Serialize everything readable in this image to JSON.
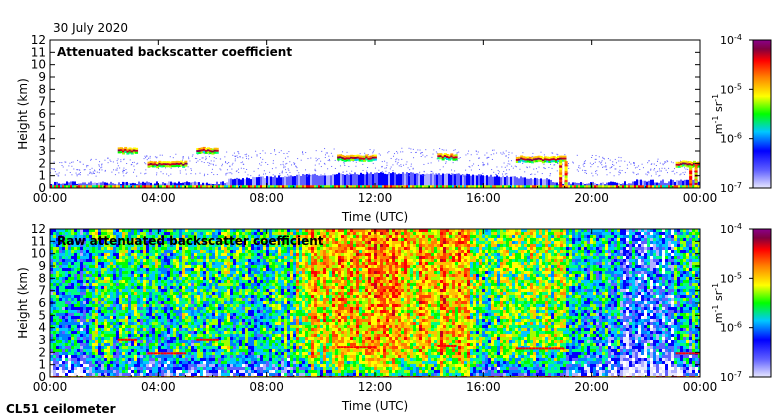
{
  "date_label": "30 July 2020",
  "instrument_label": "CL51 ceilometer",
  "chart_data": [
    {
      "type": "heatmap",
      "title": "Attenuated backscatter coefficient",
      "xlabel": "Time (UTC)",
      "ylabel": "Height (km)",
      "xlim": [
        0,
        24
      ],
      "ylim": [
        0,
        12
      ],
      "x_ticks": [
        "00:00",
        "04:00",
        "08:00",
        "12:00",
        "16:00",
        "20:00",
        "00:00"
      ],
      "y_ticks": [
        0,
        1,
        2,
        3,
        4,
        5,
        6,
        7,
        8,
        9,
        10,
        11,
        12
      ],
      "colorbar": {
        "scale": "log",
        "range": [
          1e-07,
          0.0001
        ],
        "unit_label": "m-1 sr-1",
        "tick_labels": [
          "10-4",
          "10-5",
          "10-6",
          "10-7"
        ],
        "colors": [
          "#e8e8ff",
          "#0000ff",
          "#00c8ff",
          "#00ff00",
          "#ffff00",
          "#ff8000",
          "#ff0000",
          "#800040",
          "#8b008b"
        ]
      },
      "boundary_layer_height_km": 0.5,
      "cloud_layers": [
        {
          "start_h": 2.5,
          "end_h": 3.2,
          "height_km": 3.1
        },
        {
          "start_h": 3.6,
          "end_h": 5.0,
          "height_km": 2.0
        },
        {
          "start_h": 5.4,
          "end_h": 6.2,
          "height_km": 3.1
        },
        {
          "start_h": 10.6,
          "end_h": 12.0,
          "height_km": 2.5
        },
        {
          "start_h": 14.3,
          "end_h": 15.0,
          "height_km": 2.6
        },
        {
          "start_h": 17.2,
          "end_h": 19.0,
          "height_km": 2.4
        },
        {
          "start_h": 23.1,
          "end_h": 24.0,
          "height_km": 2.0
        }
      ]
    },
    {
      "type": "heatmap",
      "title": "Raw attenuated backscatter coefficient",
      "xlabel": "Time (UTC)",
      "ylabel": "Height (km)",
      "xlim": [
        0,
        24
      ],
      "ylim": [
        0,
        12
      ],
      "x_ticks": [
        "00:00",
        "04:00",
        "08:00",
        "12:00",
        "16:00",
        "20:00",
        "00:00"
      ],
      "y_ticks": [
        0,
        1,
        2,
        3,
        4,
        5,
        6,
        7,
        8,
        9,
        10,
        11,
        12
      ],
      "colorbar": {
        "scale": "log",
        "range": [
          1e-07,
          0.0001
        ],
        "unit_label": "m-1 sr-1",
        "tick_labels": [
          "10-4",
          "10-5",
          "10-6",
          "10-7"
        ],
        "colors": [
          "#e8e8ff",
          "#0000ff",
          "#00c8ff",
          "#00ff00",
          "#ffff00",
          "#ff8000",
          "#ff0000",
          "#800040",
          "#8b008b"
        ]
      },
      "high_noise_period_h": [
        9.5,
        15.5
      ]
    }
  ]
}
